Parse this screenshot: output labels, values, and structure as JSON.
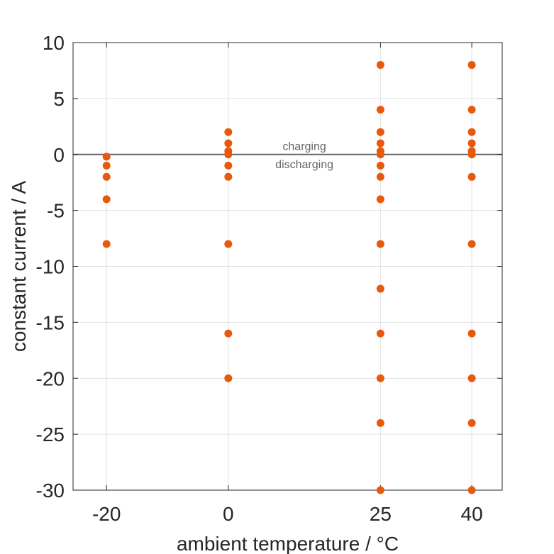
{
  "chart_data": {
    "type": "scatter",
    "title": "",
    "xlabel": "ambient temperature / °C",
    "ylabel": "constant current / A",
    "x_ticks": [
      -20,
      0,
      25,
      40
    ],
    "y_ticks": [
      -30,
      -25,
      -20,
      -15,
      -10,
      -5,
      0,
      5,
      10
    ],
    "xlim": [
      -25.5,
      45
    ],
    "ylim": [
      -30,
      10
    ],
    "grid": true,
    "reference_line": {
      "y": 0,
      "color": "#666666"
    },
    "annotations": [
      {
        "text": "charging",
        "x": 12.5,
        "y": 0.7
      },
      {
        "text": "discharging",
        "x": 12.5,
        "y": -0.9
      }
    ],
    "marker_color": "#E8590C",
    "points": [
      {
        "x": -20,
        "y": -0.2
      },
      {
        "x": -20,
        "y": -1
      },
      {
        "x": -20,
        "y": -2
      },
      {
        "x": -20,
        "y": -4
      },
      {
        "x": -20,
        "y": -8
      },
      {
        "x": 0,
        "y": 2
      },
      {
        "x": 0,
        "y": 1
      },
      {
        "x": 0,
        "y": 0.3
      },
      {
        "x": 0,
        "y": 0
      },
      {
        "x": 0,
        "y": -1
      },
      {
        "x": 0,
        "y": -2
      },
      {
        "x": 0,
        "y": -8
      },
      {
        "x": 0,
        "y": -16
      },
      {
        "x": 0,
        "y": -20
      },
      {
        "x": 25,
        "y": 8
      },
      {
        "x": 25,
        "y": 4
      },
      {
        "x": 25,
        "y": 2
      },
      {
        "x": 25,
        "y": 1
      },
      {
        "x": 25,
        "y": 0.3
      },
      {
        "x": 25,
        "y": 0
      },
      {
        "x": 25,
        "y": -1
      },
      {
        "x": 25,
        "y": -2
      },
      {
        "x": 25,
        "y": -4
      },
      {
        "x": 25,
        "y": -8
      },
      {
        "x": 25,
        "y": -12
      },
      {
        "x": 25,
        "y": -16
      },
      {
        "x": 25,
        "y": -20
      },
      {
        "x": 25,
        "y": -24
      },
      {
        "x": 25,
        "y": -30
      },
      {
        "x": 40,
        "y": 8
      },
      {
        "x": 40,
        "y": 4
      },
      {
        "x": 40,
        "y": 2
      },
      {
        "x": 40,
        "y": 1
      },
      {
        "x": 40,
        "y": 0.3
      },
      {
        "x": 40,
        "y": 0
      },
      {
        "x": 40,
        "y": -2
      },
      {
        "x": 40,
        "y": -8
      },
      {
        "x": 40,
        "y": -16
      },
      {
        "x": 40,
        "y": -20
      },
      {
        "x": 40,
        "y": -24
      },
      {
        "x": 40,
        "y": -30
      }
    ]
  }
}
